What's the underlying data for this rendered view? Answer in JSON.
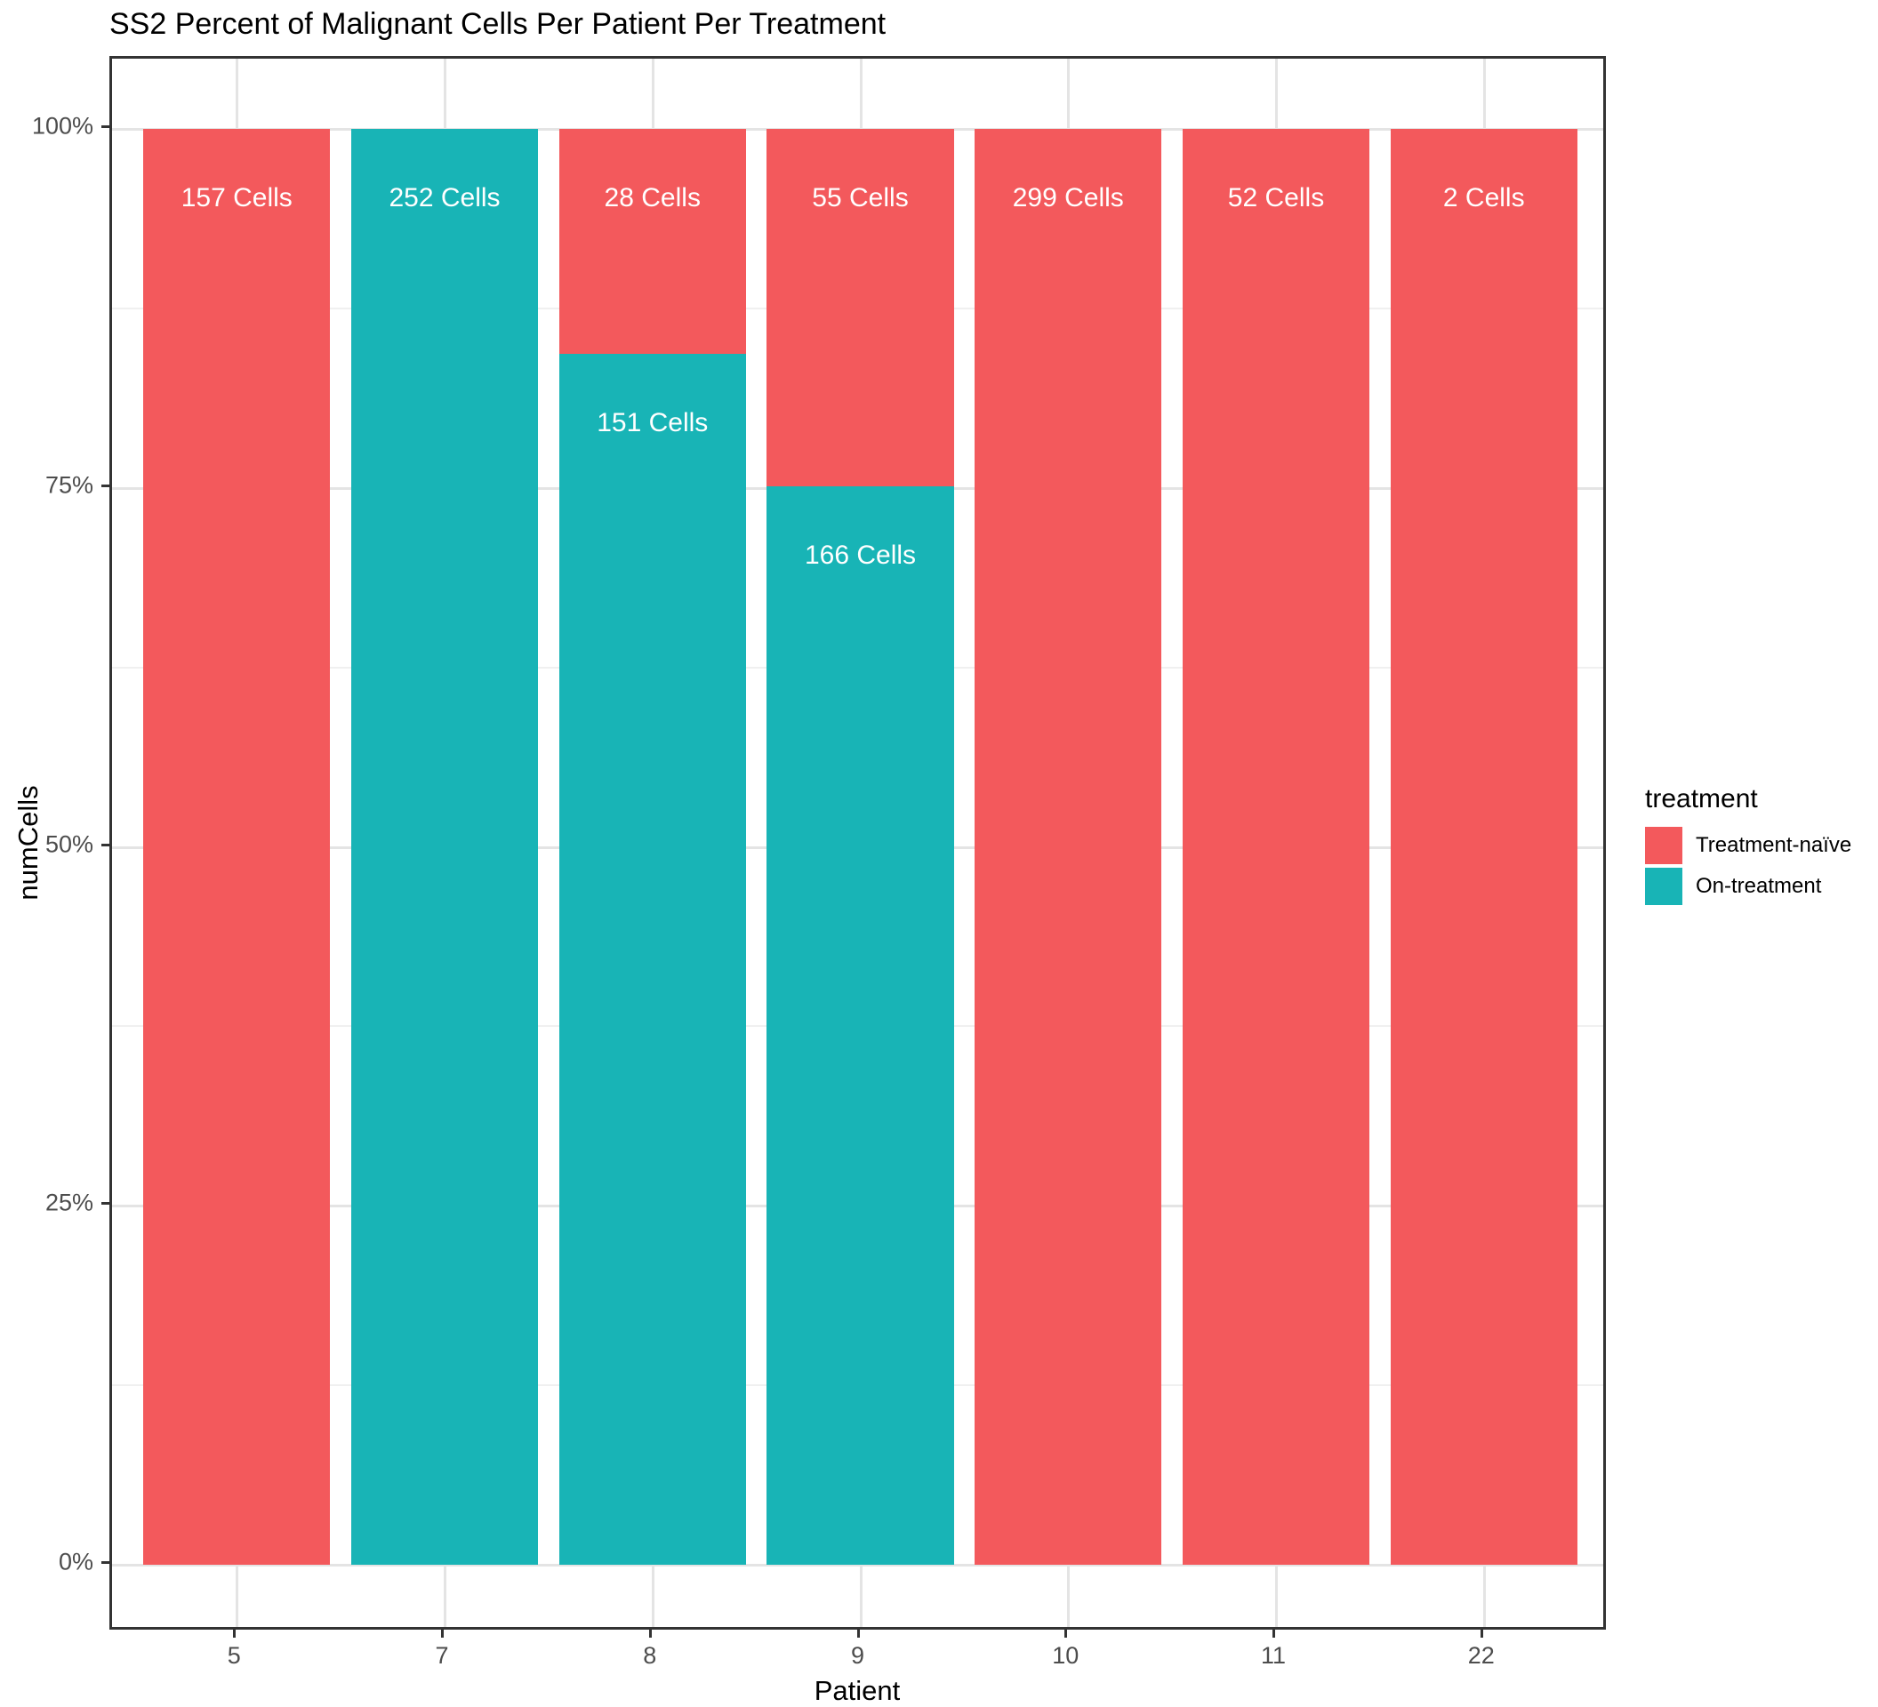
{
  "title": "SS2 Percent of Malignant Cells Per Patient Per Treatment",
  "axes": {
    "x_label": "Patient",
    "y_label": "numCells",
    "x_ticks": [
      "5",
      "7",
      "8",
      "9",
      "10",
      "11",
      "22"
    ],
    "y_ticks": [
      {
        "label": "0%",
        "value": 0
      },
      {
        "label": "25%",
        "value": 0.25
      },
      {
        "label": "50%",
        "value": 0.5
      },
      {
        "label": "75%",
        "value": 0.75
      },
      {
        "label": "100%",
        "value": 1
      }
    ]
  },
  "legend": {
    "title": "treatment",
    "items": [
      {
        "label": "Treatment-naïve",
        "color": "#F3595C"
      },
      {
        "label": "On-treatment",
        "color": "#18B4B6"
      }
    ]
  },
  "chart_data": {
    "type": "bar",
    "stacking": "fill",
    "orientation": "vertical",
    "title": "SS2 Percent of Malignant Cells Per Patient Per Treatment",
    "xlabel": "Patient",
    "ylabel": "numCells",
    "ylim": [
      0,
      1
    ],
    "grid": true,
    "legend_position": "right",
    "categories": [
      "5",
      "7",
      "8",
      "9",
      "10",
      "11",
      "22"
    ],
    "series": [
      {
        "name": "Treatment-naïve",
        "color": "#F3595C",
        "stack_order": "top",
        "values": [
          157,
          0,
          28,
          55,
          299,
          52,
          2
        ],
        "labels": [
          "157 Cells",
          null,
          "28 Cells",
          "55 Cells",
          "299 Cells",
          "52 Cells",
          "2 Cells"
        ]
      },
      {
        "name": "On-treatment",
        "color": "#18B4B6",
        "stack_order": "bottom",
        "values": [
          0,
          252,
          151,
          166,
          0,
          0,
          0
        ],
        "labels": [
          null,
          "252 Cells",
          "151 Cells",
          "166 Cells",
          null,
          null,
          null
        ]
      }
    ]
  },
  "colors": {
    "bar_label_text": "#FFFFFF",
    "grid_major": "#E4E4E4",
    "grid_minor": "#F0F0F0",
    "panel_border": "#333333",
    "tick_mark": "#333333",
    "tick_label": "#4D4D4D",
    "text": "#000000",
    "background": "#FFFFFF"
  }
}
